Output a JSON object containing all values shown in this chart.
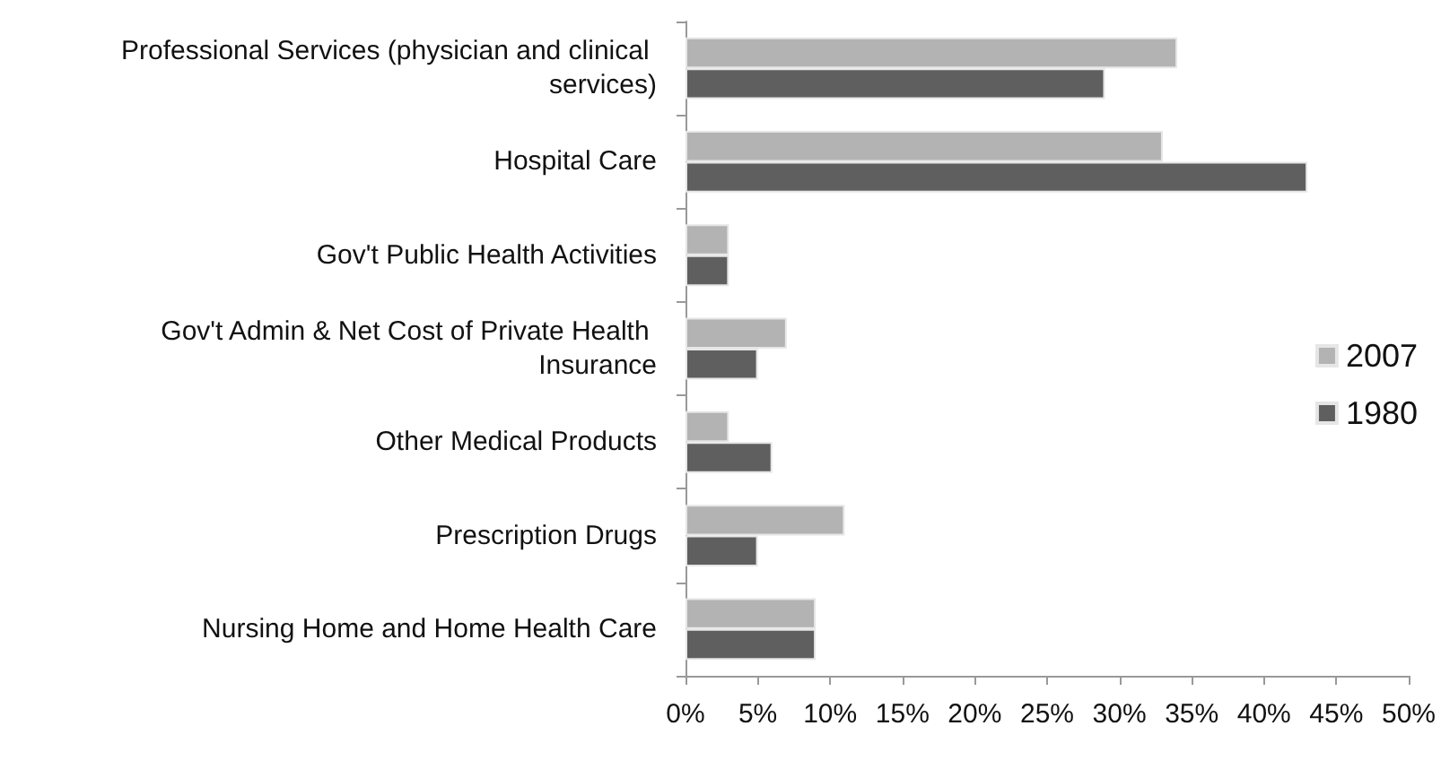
{
  "chart_data": {
    "type": "bar",
    "orientation": "horizontal",
    "categories": [
      "Professional Services (physician and clinical services)",
      "Hospital Care",
      "Gov't Public Health Activities",
      "Gov't Admin & Net Cost of Private Health Insurance",
      "Other Medical Products",
      "Prescription Drugs",
      "Nursing Home and Home Health Care"
    ],
    "series": [
      {
        "name": "2007",
        "color": "#b3b3b3",
        "values": [
          34,
          33,
          3,
          7,
          3,
          11,
          9
        ]
      },
      {
        "name": "1980",
        "color": "#5f5f5f",
        "values": [
          29,
          43,
          3,
          5,
          6,
          5,
          9
        ]
      }
    ],
    "xlim": [
      0,
      50
    ],
    "xticks": [
      {
        "value": 0,
        "label": "0%"
      },
      {
        "value": 5,
        "label": "5%"
      },
      {
        "value": 10,
        "label": "10%"
      },
      {
        "value": 15,
        "label": "15%"
      },
      {
        "value": 20,
        "label": "20%"
      },
      {
        "value": 25,
        "label": "25%"
      },
      {
        "value": 30,
        "label": "30%"
      },
      {
        "value": 35,
        "label": "35%"
      },
      {
        "value": 40,
        "label": "40%"
      },
      {
        "value": 45,
        "label": "45%"
      },
      {
        "value": 50,
        "label": "50%"
      }
    ],
    "grid": false,
    "legend": "right"
  }
}
